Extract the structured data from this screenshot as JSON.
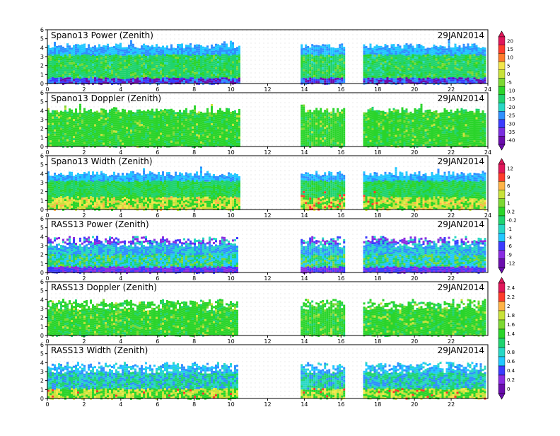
{
  "colors": {
    "scale": [
      "#6a0dad",
      "#7a2ee0",
      "#3b3bff",
      "#2f8fff",
      "#21c7ff",
      "#27d7c4",
      "#1fd36f",
      "#2ad42a",
      "#7cd832",
      "#c8e23a",
      "#f2e64a",
      "#ffb347",
      "#ff7a2a",
      "#ff3b2b",
      "#e0175a"
    ],
    "rass_scale": [
      "#6a0dad",
      "#8a2be2",
      "#3b3bff",
      "#2f8fff",
      "#21c7ff",
      "#27d7c4",
      "#1fd36f",
      "#2ad42a",
      "#7cd832",
      "#c8e23a",
      "#f2e64a",
      "#ffb347",
      "#ff3b2b",
      "#e0175a"
    ]
  },
  "chart_data": [
    {
      "type": "heatmap",
      "title": "Spano13 Power (Zenith)",
      "date": "29JAN2014",
      "x_ticks": [
        "0",
        "2",
        "4",
        "6",
        "8",
        "10",
        "12",
        "14",
        "16",
        "18",
        "20",
        "22",
        "24"
      ],
      "y_ticks": [
        "0",
        "1",
        "2",
        "3",
        "4",
        "5",
        "6"
      ],
      "xlim": [
        0,
        24
      ],
      "ylim": [
        0,
        6
      ],
      "data_segments_hours": [
        [
          0,
          10.5
        ],
        [
          13.8,
          16.2
        ],
        [
          17.2,
          23.9
        ]
      ],
      "colorbar_group": 1
    },
    {
      "type": "heatmap",
      "title": "Spano13 Doppler (Zenith)",
      "date": "29JAN2014",
      "x_ticks": [
        "0",
        "2",
        "4",
        "6",
        "8",
        "10",
        "12",
        "14",
        "16",
        "18",
        "20",
        "22",
        "24"
      ],
      "y_ticks": [
        "0",
        "1",
        "2",
        "3",
        "4",
        "5",
        "6"
      ],
      "xlim": [
        0,
        24
      ],
      "ylim": [
        0,
        6
      ],
      "data_segments_hours": [
        [
          0,
          10.5
        ],
        [
          13.8,
          16.2
        ],
        [
          17.2,
          23.9
        ]
      ],
      "colorbar_group": 1
    },
    {
      "type": "heatmap",
      "title": "Spano13 Width (Zenith)",
      "date": "29JAN2014",
      "x_ticks": [
        "0",
        "2",
        "4",
        "6",
        "8",
        "10",
        "12",
        "14",
        "16",
        "18",
        "20",
        "22",
        "24"
      ],
      "y_ticks": [
        "0",
        "1",
        "2",
        "3",
        "4",
        "5",
        "6"
      ],
      "xlim": [
        0,
        24
      ],
      "ylim": [
        0,
        6
      ],
      "data_segments_hours": [
        [
          0,
          10.5
        ],
        [
          13.8,
          16.2
        ],
        [
          17.2,
          23.9
        ]
      ],
      "colorbar_group": 2
    },
    {
      "type": "heatmap",
      "title": "RASS13 Power (Zenith)",
      "date": "29JAN2014",
      "x_ticks": [
        "0",
        "2",
        "4",
        "6",
        "8",
        "10",
        "12",
        "14",
        "16",
        "18",
        "20",
        "22"
      ],
      "y_ticks": [
        "0",
        "1",
        "2",
        "3",
        "4",
        "5",
        "6"
      ],
      "xlim": [
        0,
        24
      ],
      "ylim": [
        0,
        6
      ],
      "data_segments_hours": [
        [
          0,
          10.3
        ],
        [
          13.8,
          16.2
        ],
        [
          17.2,
          23.9
        ]
      ],
      "colorbar_group": 2
    },
    {
      "type": "heatmap",
      "title": "RASS13 Doppler (Zenith)",
      "date": "29JAN2014",
      "x_ticks": [
        "0",
        "2",
        "4",
        "6",
        "8",
        "10",
        "12",
        "14",
        "16",
        "18",
        "20",
        "22"
      ],
      "y_ticks": [
        "0",
        "1",
        "2",
        "3",
        "4",
        "5",
        "6"
      ],
      "xlim": [
        0,
        24
      ],
      "ylim": [
        0,
        6
      ],
      "data_segments_hours": [
        [
          0,
          10.3
        ],
        [
          13.8,
          16.2
        ],
        [
          17.2,
          23.9
        ]
      ],
      "colorbar_group": 3
    },
    {
      "type": "heatmap",
      "title": "RASS13 Width (Zenith)",
      "date": "29JAN2014",
      "x_ticks": [
        "0",
        "2",
        "4",
        "6",
        "8",
        "10",
        "12",
        "14",
        "16",
        "18",
        "20",
        "22"
      ],
      "y_ticks": [
        "0",
        "1",
        "2",
        "3",
        "4",
        "5",
        "6"
      ],
      "xlim": [
        0,
        24
      ],
      "ylim": [
        0,
        6
      ],
      "data_segments_hours": [
        [
          0,
          10.3
        ],
        [
          13.8,
          16.2
        ],
        [
          17.2,
          23.9
        ]
      ],
      "colorbar_group": 3
    }
  ],
  "colorbars": [
    {
      "labels": [
        "20",
        "15",
        "10",
        "5",
        "0",
        "-5",
        "-10",
        "-15",
        "-20",
        "-25",
        "-30",
        "-35",
        "-40"
      ]
    },
    {
      "labels": [
        "12",
        "9",
        "6",
        "3",
        "1",
        "0.2",
        "-0.2",
        "-1",
        "-3",
        "-6",
        "-9",
        "-12"
      ]
    },
    {
      "labels": [
        "2.4",
        "2.2",
        "2",
        "1.8",
        "1.6",
        "1.4",
        "1",
        "0.8",
        "0.6",
        "0.4",
        "0.2",
        "0"
      ]
    }
  ]
}
